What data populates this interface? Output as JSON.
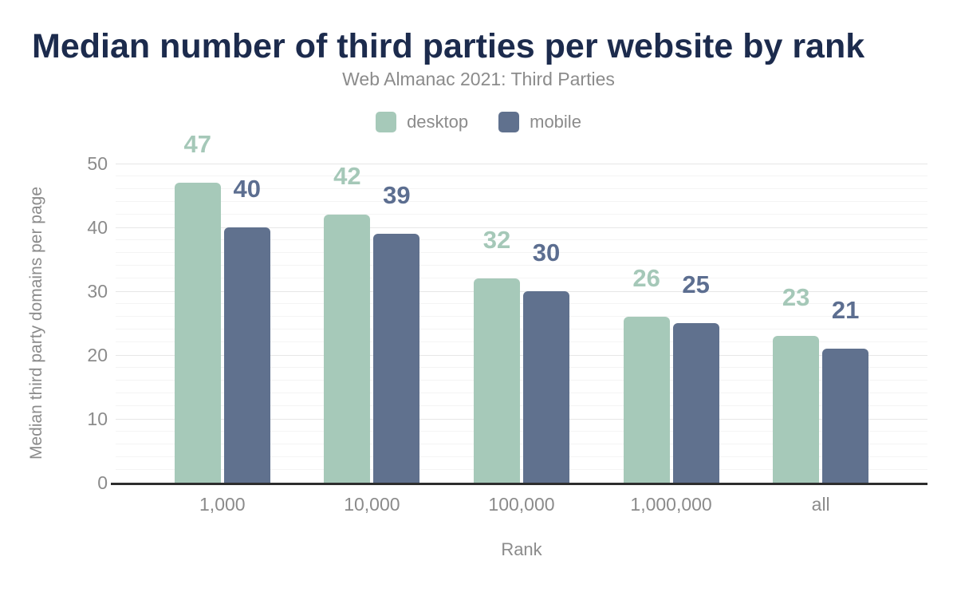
{
  "chart_data": {
    "type": "bar",
    "title": "Median number of third parties per website by rank",
    "subtitle": "Web Almanac 2021: Third Parties",
    "categories": [
      "1,000",
      "10,000",
      "100,000",
      "1,000,000",
      "all"
    ],
    "series": [
      {
        "name": "desktop",
        "color": "#a6c9b9",
        "label_color": "#a5c8b8",
        "values": [
          47,
          42,
          32,
          26,
          23
        ]
      },
      {
        "name": "mobile",
        "color": "#60718e",
        "label_color": "#5c6e90",
        "values": [
          40,
          39,
          30,
          25,
          21
        ]
      }
    ],
    "xlabel": "Rank",
    "ylabel": "Median third party domains per page",
    "ylim": [
      0,
      50
    ],
    "yticks": [
      0,
      10,
      20,
      30,
      40,
      50
    ],
    "minor_grid_step": 2,
    "legend_position": "top",
    "grid": "horizontal major + minor",
    "bar_value_labels": true
  },
  "colors": {
    "background": "#ffffff",
    "title_text": "#1c2b4d",
    "muted_text": "#8b8b8b",
    "axis_line": "#2d2d2d",
    "grid_major": "#e7e7e7",
    "grid_minor": "#f4f4f4"
  }
}
